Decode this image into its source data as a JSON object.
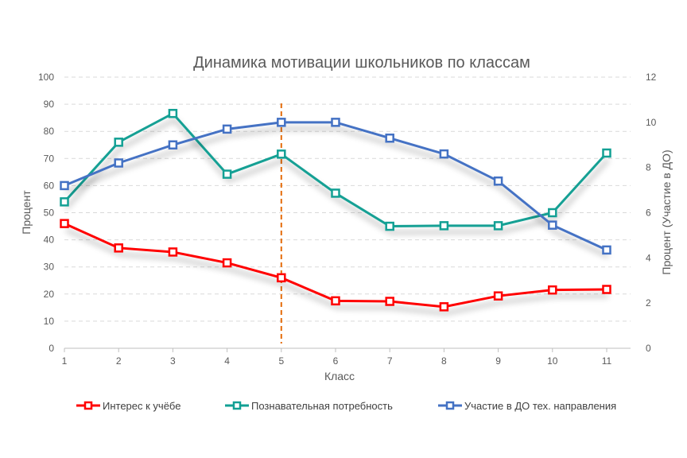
{
  "chart_data": {
    "type": "line",
    "title": "Динамика мотивации школьников по классам",
    "xlabel": "Класс",
    "ylabel": "Процент",
    "y2label": "Процент (Участие в ДО)",
    "x": [
      1,
      2,
      3,
      4,
      5,
      6,
      7,
      8,
      9,
      10,
      11
    ],
    "ylim": [
      0,
      100
    ],
    "yticks": [
      0,
      10,
      20,
      30,
      40,
      50,
      60,
      70,
      80,
      90,
      100
    ],
    "y2lim": [
      0,
      12
    ],
    "y2ticks": [
      0,
      2,
      4,
      6,
      8,
      10,
      12
    ],
    "grid": true,
    "legend": "bottom",
    "annotation": {
      "type": "vertical-dashed-line",
      "x": 5,
      "color": "#E46C0A"
    },
    "series": [
      {
        "name": "Интерес к учёбе",
        "axis": "left",
        "color": "#FF0000",
        "values": [
          46,
          37,
          35.5,
          31.5,
          26,
          17.5,
          17.3,
          15.3,
          19.3,
          21.5,
          21.7
        ]
      },
      {
        "name": "Познавательная потребность",
        "axis": "left",
        "color": "#12A094",
        "values": [
          54,
          76,
          86.6,
          64.2,
          71.6,
          57.2,
          45,
          45.2,
          45.2,
          50,
          72
        ]
      },
      {
        "name": "Участие в ДО тех. направления",
        "axis": "right",
        "color": "#4472C4",
        "values": [
          7.2,
          8.2,
          9,
          9.7,
          10,
          10,
          9.3,
          8.6,
          7.4,
          5.45,
          4.35
        ]
      }
    ]
  }
}
